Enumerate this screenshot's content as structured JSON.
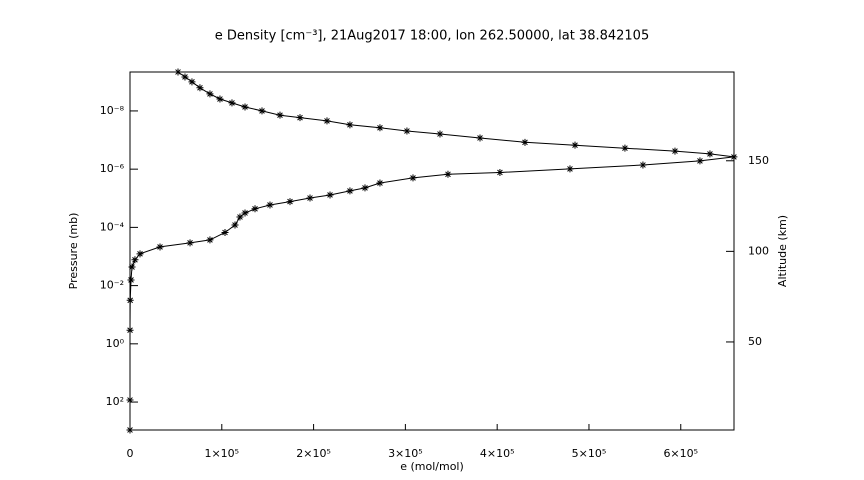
{
  "chart_data": {
    "type": "scatter",
    "title": "e Density [cm⁻³], 21Aug2017 18:00, lon 262.50000, lat 38.842105",
    "x_label": "e (mol/mol)",
    "y_label": "Pressure (mb)",
    "y2_label": "Altitude (km)",
    "y_scale": "log",
    "color": "#000000",
    "x": [
      52300,
      59900,
      67500,
      76200,
      87100,
      98000,
      111100,
      125300,
      143800,
      163400,
      185200,
      214600,
      239600,
      272300,
      301700,
      337700,
      381300,
      430300,
      484800,
      539200,
      593700,
      631800,
      657900,
      620900,
      558800,
      479300,
      403000,
      346400,
      308300,
      272300,
      256000,
      239600,
      217900,
      196100,
      174300,
      152500,
      136200,
      125300,
      119800,
      114400,
      103500,
      87100,
      65400,
      32700,
      10900,
      5400,
      2200,
      1100,
      200,
      50,
      0,
      0
    ],
    "y": [
      4.6e-10,
      6.8e-10,
      1e-09,
      1.6e-09,
      2.6e-09,
      3.9e-09,
      5.3e-09,
      7.3e-09,
      1e-08,
      1.4e-08,
      1.7e-08,
      2.2e-08,
      3e-08,
      3.8e-08,
      4.9e-08,
      6.2e-08,
      8.5e-08,
      1.2e-07,
      1.5e-07,
      1.9e-07,
      2.4e-07,
      3e-07,
      3.8e-07,
      5.2e-07,
      7.2e-07,
      9.8e-07,
      1.3e-06,
      1.5e-06,
      2e-06,
      3e-06,
      4.4e-06,
      5.6e-06,
      7.7e-06,
      9.8e-06,
      1.3e-05,
      1.7e-05,
      2.3e-05,
      3.2e-05,
      4.4e-05,
      8.3e-05,
      0.00015,
      0.00027,
      0.00034,
      0.00047,
      0.00081,
      0.0013,
      0.0023,
      0.0064,
      0.032,
      0.34,
      85,
      910
    ],
    "xlim": [
      0,
      658000
    ],
    "xticks": [
      0,
      {
        "value": 100000,
        "label": "1×10⁵"
      },
      {
        "value": 200000,
        "label": "2×10⁵"
      },
      {
        "value": 300000,
        "label": "3×10⁵"
      },
      {
        "value": 400000,
        "label": "4×10⁵"
      },
      {
        "value": 500000,
        "label": "5×10⁵"
      },
      {
        "value": 600000,
        "label": "6×10⁵"
      }
    ],
    "ylim": [
      912,
      4.6e-10
    ],
    "yticks": [
      {
        "value": 1e-08,
        "label": "10⁻⁸"
      },
      {
        "value": 1e-06,
        "label": "10⁻⁶"
      },
      {
        "value": 0.0001,
        "label": "10⁻⁴"
      },
      {
        "value": 0.01,
        "label": "10⁻²"
      },
      {
        "value": 1,
        "label": "10⁰"
      },
      {
        "value": 100,
        "label": "10²"
      }
    ],
    "y2lim": [
      1.4,
      199
    ],
    "y2ticks": [
      50,
      100,
      150
    ]
  }
}
